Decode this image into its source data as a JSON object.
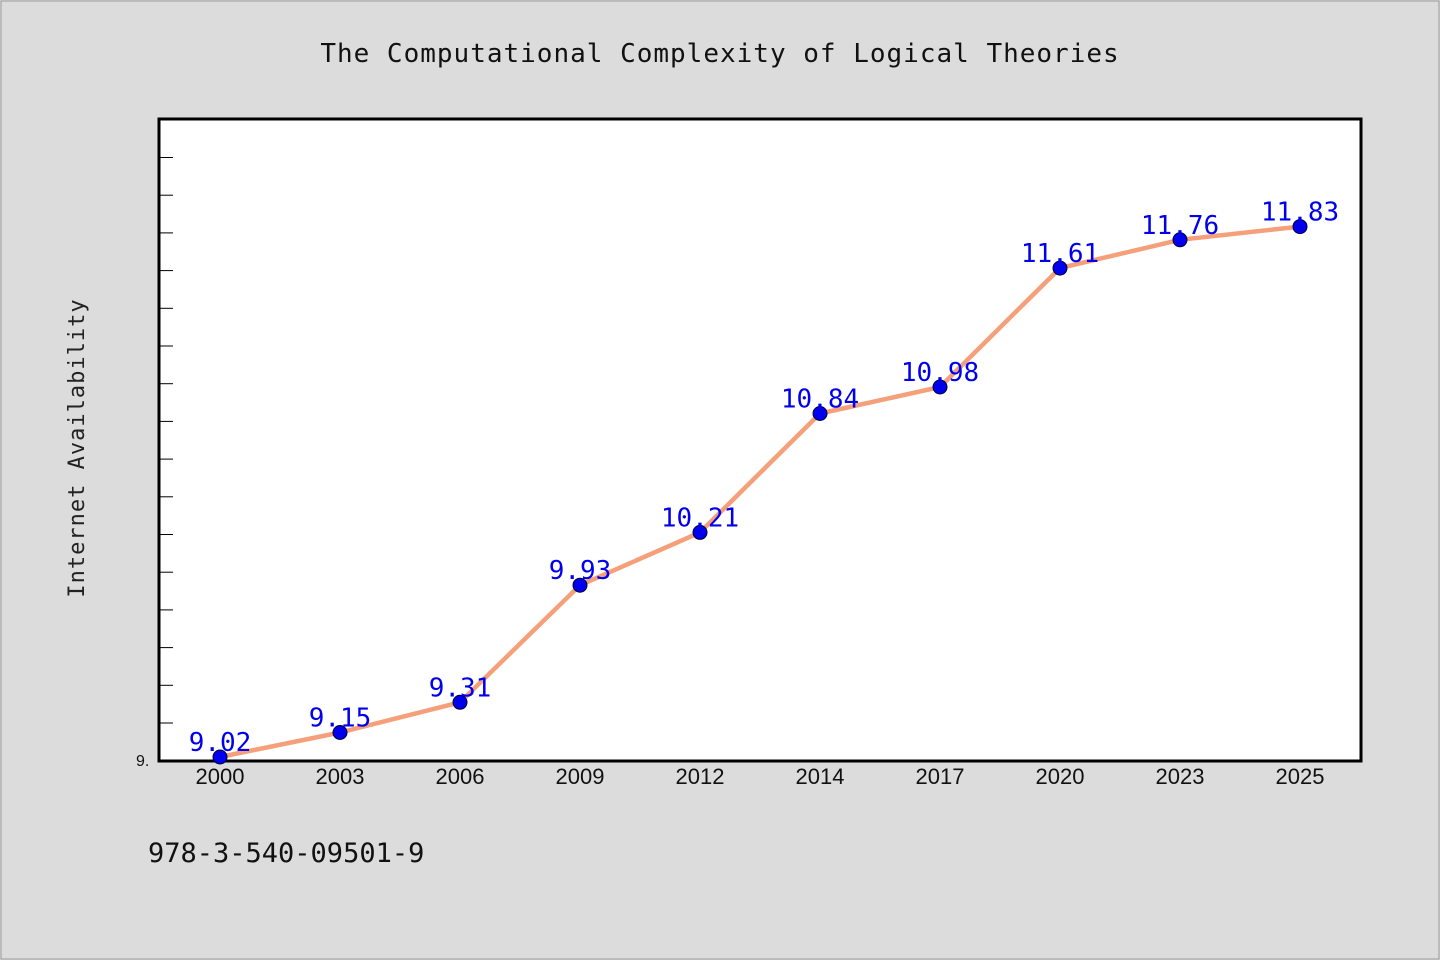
{
  "chart_data": {
    "type": "line",
    "title": "The Computational Complexity of Logical Theories",
    "xlabel": "",
    "ylabel": "Internet Availability",
    "categories": [
      "2000",
      "2003",
      "2006",
      "2009",
      "2012",
      "2014",
      "2017",
      "2020",
      "2023",
      "2025"
    ],
    "series": [
      {
        "values": [
          9.02,
          9.15,
          9.31,
          9.93,
          10.21,
          10.84,
          10.98,
          11.61,
          11.76,
          11.83
        ]
      }
    ],
    "ylim": [
      9.02,
      12.4
    ],
    "y_tick_label": "9.",
    "data_labels": [
      "9.02",
      "9.15",
      "9.31",
      "9.93",
      "10.21",
      "10.84",
      "10.98",
      "11.61",
      "11.76",
      "11.83"
    ],
    "grid": false,
    "colors": {
      "line": "#f5a07a",
      "marker": "#0000ee",
      "label": "#0000ee",
      "background": "#dcdcdc",
      "plot_background": "#ffffff"
    }
  },
  "footnote": "978-3-540-09501-9"
}
